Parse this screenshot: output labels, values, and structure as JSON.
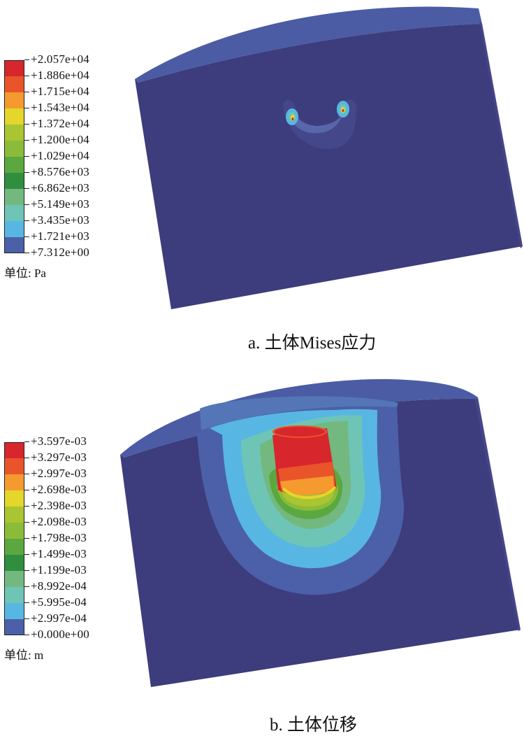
{
  "panel_a": {
    "legend": [
      "+2.057e+04",
      "+1.886e+04",
      "+1.715e+04",
      "+1.543e+04",
      "+1.372e+04",
      "+1.200e+04",
      "+1.029e+04",
      "+8.576e+03",
      "+6.862e+03",
      "+5.149e+03",
      "+3.435e+03",
      "+1.721e+03",
      "+7.312e+00"
    ],
    "unit": "单位: Pa",
    "caption": "a. 土体Mises应力"
  },
  "panel_b": {
    "legend": [
      "+3.597e-03",
      "+3.297e-03",
      "+2.997e-03",
      "+2.698e-03",
      "+2.398e-03",
      "+2.098e-03",
      "+1.798e-03",
      "+1.499e-03",
      "+1.199e-03",
      "+8.992e-04",
      "+5.995e-04",
      "+2.997e-04",
      "+0.000e+00"
    ],
    "unit": "单位: m",
    "caption": "b. 土体位移"
  },
  "colors": {
    "legend_scale": [
      "#d7262c",
      "#e9542b",
      "#f59a2f",
      "#e4d62b",
      "#a9c531",
      "#8bbc39",
      "#5aa83f",
      "#2f8f3e",
      "#73b87e",
      "#6ec5b6",
      "#57b7e2",
      "#4b60a8",
      "#3b3f8a"
    ],
    "soil_base": "#3d3c7d",
    "soil_top": "#4a5aa0"
  }
}
